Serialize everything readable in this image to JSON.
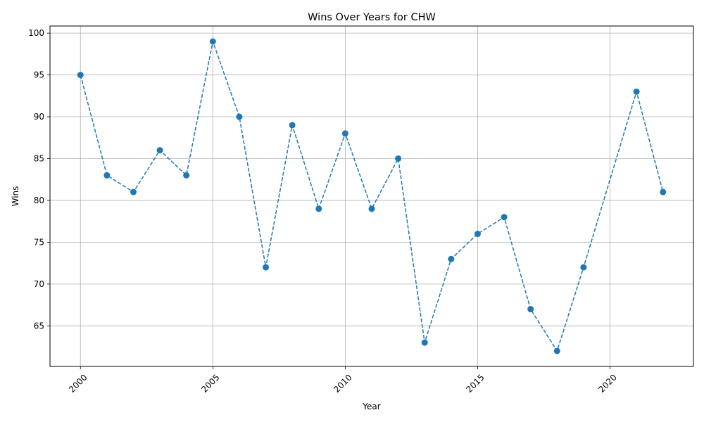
{
  "chart_data": {
    "type": "line",
    "title": "Wins Over Years for CHW",
    "xlabel": "Year",
    "ylabel": "Wins",
    "x": [
      2000,
      2001,
      2002,
      2003,
      2004,
      2005,
      2006,
      2007,
      2008,
      2009,
      2010,
      2011,
      2012,
      2013,
      2014,
      2015,
      2016,
      2017,
      2018,
      2019,
      2021,
      2022
    ],
    "series": [
      {
        "values": [
          95,
          83,
          81,
          86,
          83,
          99,
          90,
          72,
          89,
          79,
          88,
          79,
          85,
          63,
          73,
          76,
          78,
          67,
          62,
          72,
          93,
          81
        ],
        "color": "#1f77b4",
        "line_style": "dashed",
        "marker": "circle"
      }
    ],
    "xlim": [
      1998.85,
      2023.15
    ],
    "ylim": [
      60.15,
      100.85
    ],
    "xticks": [
      "2000",
      "2005",
      "2010",
      "2015",
      "2020"
    ],
    "xtick_values": [
      2000,
      2005,
      2010,
      2015,
      2020
    ],
    "yticks": [
      "65",
      "70",
      "75",
      "80",
      "85",
      "90",
      "95",
      "100"
    ],
    "ytick_values": [
      65,
      70,
      75,
      80,
      85,
      90,
      95,
      100
    ],
    "xtick_rotation": 45,
    "grid": true,
    "legend": "none"
  }
}
